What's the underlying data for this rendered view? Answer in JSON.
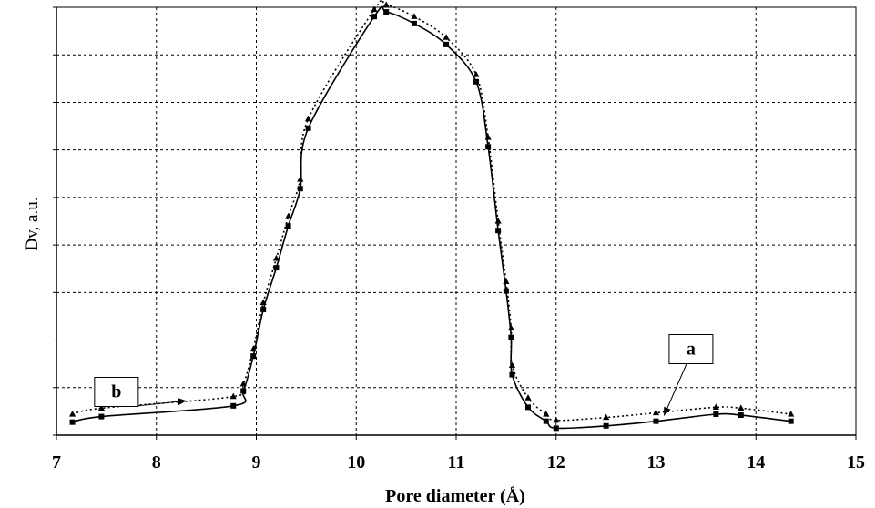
{
  "chart_data": {
    "type": "line",
    "xlabel": "Pore diameter (Å)",
    "ylabel": "Dv, a.u.",
    "xlim": [
      7,
      15
    ],
    "ylim": [
      0,
      9.2
    ],
    "x_ticks": [
      "7",
      "8",
      "9",
      "10",
      "11",
      "12",
      "13",
      "14",
      "15"
    ],
    "y_tick_count": 9,
    "y_tick_labels_shown": false,
    "grid": true,
    "series": [
      {
        "name": "a",
        "style": "solid",
        "marker": "square",
        "color": "#000000",
        "points": [
          [
            7.16,
            0.28
          ],
          [
            7.45,
            0.4
          ],
          [
            8.77,
            0.63
          ],
          [
            8.87,
            0.95
          ],
          [
            8.97,
            1.7
          ],
          [
            9.07,
            2.7
          ],
          [
            9.2,
            3.6
          ],
          [
            9.32,
            4.5
          ],
          [
            9.44,
            5.3
          ],
          [
            9.52,
            6.6
          ],
          [
            10.18,
            9.0
          ],
          [
            10.3,
            9.1
          ],
          [
            10.58,
            8.85
          ],
          [
            10.9,
            8.4
          ],
          [
            11.2,
            7.6
          ],
          [
            11.32,
            6.2
          ],
          [
            11.42,
            4.4
          ],
          [
            11.5,
            3.1
          ],
          [
            11.55,
            2.1
          ],
          [
            11.56,
            1.3
          ],
          [
            11.72,
            0.6
          ],
          [
            11.9,
            0.3
          ],
          [
            12.0,
            0.15
          ],
          [
            12.5,
            0.2
          ],
          [
            13.0,
            0.3
          ],
          [
            13.6,
            0.45
          ],
          [
            13.85,
            0.43
          ],
          [
            14.35,
            0.3
          ]
        ]
      },
      {
        "name": "b",
        "style": "dotted",
        "marker": "triangle",
        "color": "#000000",
        "points": [
          [
            7.16,
            0.45
          ],
          [
            7.45,
            0.58
          ],
          [
            8.77,
            0.83
          ],
          [
            8.87,
            1.1
          ],
          [
            8.97,
            1.85
          ],
          [
            9.07,
            2.85
          ],
          [
            9.2,
            3.8
          ],
          [
            9.32,
            4.7
          ],
          [
            9.44,
            5.5
          ],
          [
            9.52,
            6.8
          ],
          [
            10.18,
            9.15
          ],
          [
            10.3,
            9.25
          ],
          [
            10.58,
            9.0
          ],
          [
            10.9,
            8.55
          ],
          [
            11.2,
            7.75
          ],
          [
            11.32,
            6.4
          ],
          [
            11.42,
            4.6
          ],
          [
            11.5,
            3.3
          ],
          [
            11.55,
            2.3
          ],
          [
            11.56,
            1.5
          ],
          [
            11.72,
            0.8
          ],
          [
            11.9,
            0.45
          ],
          [
            12.0,
            0.32
          ],
          [
            12.5,
            0.38
          ],
          [
            13.0,
            0.48
          ],
          [
            13.6,
            0.6
          ],
          [
            13.85,
            0.58
          ],
          [
            14.35,
            0.45
          ]
        ]
      }
    ],
    "annotations": [
      {
        "label": "b",
        "box": [
          7.6,
          0.93
        ],
        "arrow_to": [
          8.3,
          0.74
        ]
      },
      {
        "label": "a",
        "box": [
          13.35,
          1.85
        ],
        "arrow_to": [
          13.08,
          0.42
        ]
      }
    ]
  }
}
